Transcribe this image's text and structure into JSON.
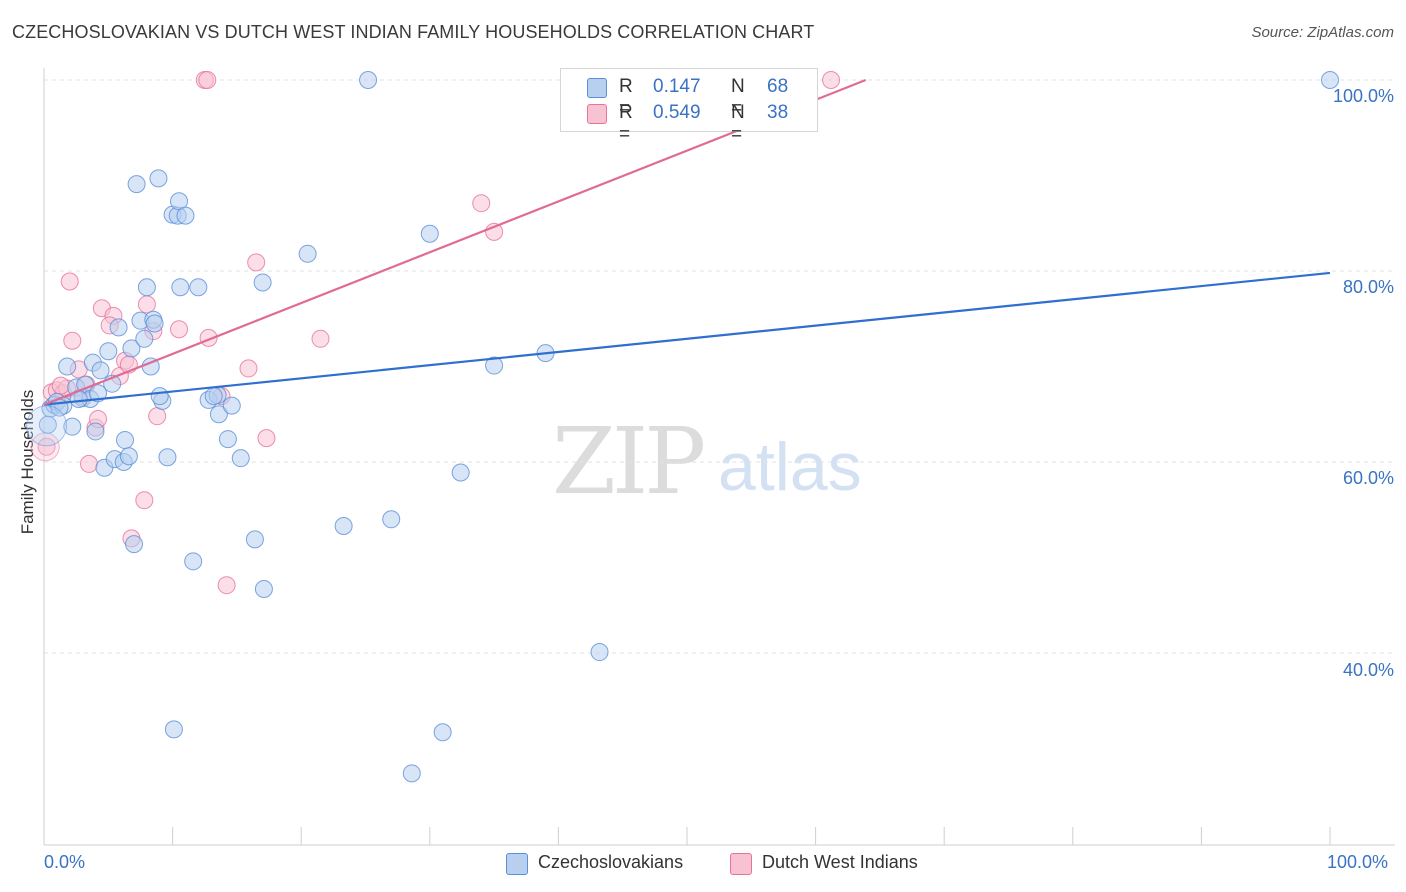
{
  "title": "CZECHOSLOVAKIAN VS DUTCH WEST INDIAN FAMILY HOUSEHOLDS CORRELATION CHART",
  "source": "Source: ZipAtlas.com",
  "watermark": {
    "zip": "ZIP",
    "atlas": "atlas"
  },
  "colors": {
    "blue": "#5b8fd9",
    "blue_fill": "#b7d0f0",
    "pink": "#e8739a",
    "pink_fill": "#f7c3d3",
    "blue_line": "#2e6fcf",
    "pink_line": "#e06b95",
    "tick_text": "#3a72c4"
  },
  "legend": {
    "rows": [
      {
        "r_label": "R =",
        "r_value": "0.147",
        "n_label": "N =",
        "n_value": "68"
      },
      {
        "r_label": "R =",
        "r_value": "0.549",
        "n_label": "N =",
        "n_value": "38"
      }
    ]
  },
  "bottom_legend": {
    "series1": "Czechoslovakians",
    "series2": "Dutch West Indians"
  },
  "chart_data": {
    "type": "scatter",
    "title": "CZECHOSLOVAKIAN VS DUTCH WEST INDIAN FAMILY HOUSEHOLDS CORRELATION CHART",
    "xlabel": "",
    "ylabel": "Family Households",
    "xlim": [
      0,
      100
    ],
    "ylim": [
      20,
      102
    ],
    "x_tick_labels": [
      "0.0%",
      "100.0%"
    ],
    "y_ticks": [
      40,
      60,
      80,
      100
    ],
    "y_tick_labels": [
      "40.0%",
      "60.0%",
      "80.0%",
      "100.0%"
    ],
    "grid": true,
    "series": [
      {
        "name": "Czechoslovakians",
        "color": "#5b8fd9",
        "trend": {
          "x": [
            0,
            100
          ],
          "y": [
            66.0,
            79.8
          ]
        },
        "points": [
          [
            0.5,
            65.6
          ],
          [
            0.8,
            66.0
          ],
          [
            1.0,
            66.3
          ],
          [
            1.5,
            65.9
          ],
          [
            1.8,
            70.0
          ],
          [
            2.2,
            63.7
          ],
          [
            2.5,
            67.8
          ],
          [
            3.0,
            66.7
          ],
          [
            3.2,
            68.1
          ],
          [
            3.6,
            66.6
          ],
          [
            3.8,
            70.4
          ],
          [
            4.0,
            63.2
          ],
          [
            4.4,
            69.6
          ],
          [
            4.7,
            59.4
          ],
          [
            5.0,
            71.6
          ],
          [
            5.3,
            68.2
          ],
          [
            5.5,
            60.3
          ],
          [
            5.8,
            74.1
          ],
          [
            6.2,
            60.0
          ],
          [
            6.3,
            62.3
          ],
          [
            6.6,
            60.6
          ],
          [
            6.8,
            71.9
          ],
          [
            7.0,
            51.4
          ],
          [
            7.2,
            89.1
          ],
          [
            7.5,
            74.8
          ],
          [
            7.8,
            72.9
          ],
          [
            8.0,
            78.3
          ],
          [
            8.3,
            70.0
          ],
          [
            8.5,
            74.9
          ],
          [
            8.6,
            74.5
          ],
          [
            8.9,
            89.7
          ],
          [
            9.2,
            66.4
          ],
          [
            9.6,
            60.5
          ],
          [
            10.0,
            85.9
          ],
          [
            10.1,
            32.0
          ],
          [
            10.4,
            85.8
          ],
          [
            10.5,
            87.3
          ],
          [
            10.6,
            78.3
          ],
          [
            11.0,
            85.8
          ],
          [
            11.6,
            49.6
          ],
          [
            12.0,
            78.3
          ],
          [
            12.8,
            66.5
          ],
          [
            13.5,
            67.0
          ],
          [
            13.6,
            65.0
          ],
          [
            14.3,
            62.4
          ],
          [
            14.6,
            65.9
          ],
          [
            15.3,
            60.4
          ],
          [
            16.4,
            51.9
          ],
          [
            17.0,
            78.8
          ],
          [
            17.1,
            46.7
          ],
          [
            20.5,
            81.8
          ],
          [
            23.3,
            53.3
          ],
          [
            25.2,
            100.0
          ],
          [
            27.0,
            54.0
          ],
          [
            28.6,
            27.4
          ],
          [
            30.0,
            83.9
          ],
          [
            31.0,
            31.7
          ],
          [
            32.4,
            58.9
          ],
          [
            35.0,
            70.1
          ],
          [
            39.0,
            71.4
          ],
          [
            43.2,
            40.1
          ],
          [
            100.0,
            100.0
          ],
          [
            0.3,
            63.9
          ],
          [
            1.2,
            65.7
          ],
          [
            2.7,
            66.6
          ],
          [
            4.2,
            67.2
          ],
          [
            9.0,
            66.9
          ],
          [
            13.2,
            66.9
          ]
        ]
      },
      {
        "name": "Dutch West Indians",
        "color": "#e8739a",
        "trend": {
          "x": [
            0,
            63.9
          ],
          "y": [
            66.0,
            100.0
          ]
        },
        "points": [
          [
            0.2,
            61.6
          ],
          [
            0.6,
            67.3
          ],
          [
            1.0,
            67.5
          ],
          [
            1.5,
            67.2
          ],
          [
            1.8,
            67.7
          ],
          [
            2.0,
            78.9
          ],
          [
            2.2,
            72.7
          ],
          [
            2.7,
            69.7
          ],
          [
            3.0,
            66.9
          ],
          [
            3.5,
            59.8
          ],
          [
            4.0,
            63.6
          ],
          [
            4.2,
            64.5
          ],
          [
            4.5,
            76.1
          ],
          [
            5.4,
            75.3
          ],
          [
            5.9,
            69.0
          ],
          [
            6.3,
            70.6
          ],
          [
            6.6,
            70.2
          ],
          [
            6.8,
            52.0
          ],
          [
            7.8,
            56.0
          ],
          [
            8.0,
            76.5
          ],
          [
            8.5,
            73.7
          ],
          [
            8.8,
            64.8
          ],
          [
            10.5,
            73.9
          ],
          [
            12.5,
            100.0
          ],
          [
            12.7,
            100.0
          ],
          [
            12.8,
            73.0
          ],
          [
            13.8,
            66.9
          ],
          [
            14.2,
            47.1
          ],
          [
            15.9,
            69.8
          ],
          [
            16.5,
            80.9
          ],
          [
            17.3,
            62.5
          ],
          [
            21.5,
            72.9
          ],
          [
            34.0,
            87.1
          ],
          [
            35.0,
            84.1
          ],
          [
            61.2,
            100.0
          ],
          [
            1.3,
            68.0
          ],
          [
            3.3,
            68.1
          ],
          [
            5.1,
            74.3
          ]
        ]
      }
    ]
  }
}
